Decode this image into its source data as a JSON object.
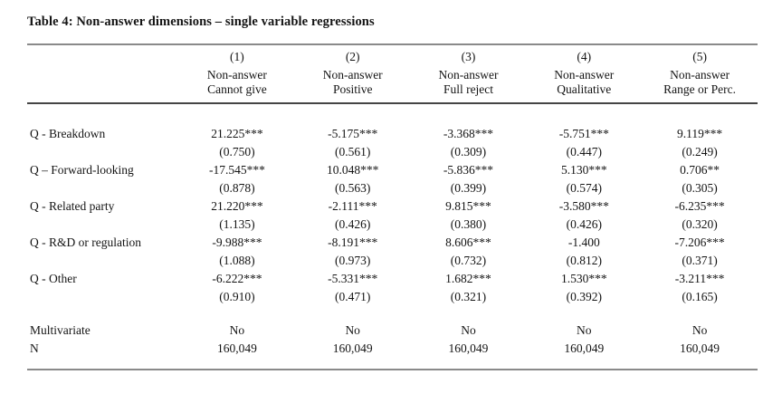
{
  "page": {
    "title": "Table 4: Non-answer dimensions – single variable regressions"
  },
  "table": {
    "columns": [
      {
        "num": "(1)",
        "line1": "Non-answer",
        "line2": "Cannot give"
      },
      {
        "num": "(2)",
        "line1": "Non-answer",
        "line2": "Positive"
      },
      {
        "num": "(3)",
        "line1": "Non-answer",
        "line2": "Full reject"
      },
      {
        "num": "(4)",
        "line1": "Non-answer",
        "line2": "Qualitative"
      },
      {
        "num": "(5)",
        "line1": "Non-answer",
        "line2": "Range or Perc."
      }
    ],
    "rows": [
      {
        "label": "Q - Breakdown",
        "coefs": [
          "21.225***",
          "-5.175***",
          "-3.368***",
          "-5.751***",
          "9.119***"
        ],
        "ses": [
          "(0.750)",
          "(0.561)",
          "(0.309)",
          "(0.447)",
          "(0.249)"
        ]
      },
      {
        "label": "Q – Forward-looking",
        "coefs": [
          "-17.545***",
          "10.048***",
          "-5.836***",
          "5.130***",
          "0.706**"
        ],
        "ses": [
          "(0.878)",
          "(0.563)",
          "(0.399)",
          "(0.574)",
          "(0.305)"
        ]
      },
      {
        "label": "Q - Related party",
        "coefs": [
          "21.220***",
          "-2.111***",
          "9.815***",
          "-3.580***",
          "-6.235***"
        ],
        "ses": [
          "(1.135)",
          "(0.426)",
          "(0.380)",
          "(0.426)",
          "(0.320)"
        ]
      },
      {
        "label": "Q - R&D or regulation",
        "coefs": [
          "-9.988***",
          "-8.191***",
          "8.606***",
          "-1.400",
          "-7.206***"
        ],
        "ses": [
          "(1.088)",
          "(0.973)",
          "(0.732)",
          "(0.812)",
          "(0.371)"
        ]
      },
      {
        "label": "Q - Other",
        "coefs": [
          "-6.222***",
          "-5.331***",
          "1.682***",
          "1.530***",
          "-3.211***"
        ],
        "ses": [
          "(0.910)",
          "(0.471)",
          "(0.321)",
          "(0.392)",
          "(0.165)"
        ]
      }
    ],
    "footer": [
      {
        "label": "Multivariate",
        "values": [
          "No",
          "No",
          "No",
          "No",
          "No"
        ]
      },
      {
        "label": "N",
        "values": [
          "160,049",
          "160,049",
          "160,049",
          "160,049",
          "160,049"
        ]
      }
    ]
  },
  "style": {
    "rule_gray": "#8a8a8a",
    "rule_dark": "#454545",
    "text_color": "#141414",
    "background_color": "#ffffff"
  }
}
